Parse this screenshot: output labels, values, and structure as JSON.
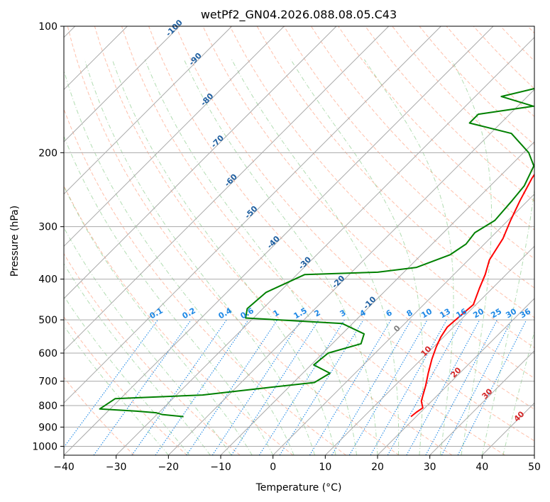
{
  "chart_data": {
    "type": "line",
    "title": "wetPf2_GN04.2026.088.08.05.C43",
    "xlabel": "Temperature (°C)",
    "ylabel": "Pressure (hPa)",
    "xlim": [
      -40,
      50
    ],
    "ylim": [
      1050,
      100
    ],
    "x_ticks": [
      "−40",
      "−30",
      "−20",
      "−10",
      "0",
      "10",
      "20",
      "30",
      "40",
      "50"
    ],
    "y_ticks": [
      {
        "p": 100,
        "label": "100"
      },
      {
        "p": 200,
        "label": "200"
      },
      {
        "p": 300,
        "label": "300"
      },
      {
        "p": 400,
        "label": "400"
      },
      {
        "p": 500,
        "label": "500"
      },
      {
        "p": 600,
        "label": "600"
      },
      {
        "p": 700,
        "label": "700"
      },
      {
        "p": 800,
        "label": "800"
      },
      {
        "p": 900,
        "label": "900"
      },
      {
        "p": 1000,
        "label": "1000"
      }
    ],
    "isotherm_labels": [
      "-100",
      "-90",
      "-80",
      "-70",
      "-60",
      "-50",
      "-40",
      "-30",
      "-20",
      "-10"
    ],
    "isotherm_label_values": [
      -100,
      -90,
      -80,
      -70,
      -60,
      -50,
      -40,
      -30,
      -20,
      -10
    ],
    "mixing_ratio_labels": [
      "0.1",
      "0.2",
      "0.4",
      "0.6",
      "1",
      "1.5",
      "2",
      "3",
      "4",
      "6",
      "8",
      "10",
      "13",
      "16",
      "20",
      "25",
      "30",
      "36"
    ],
    "mixing_ratio_values": [
      0.1,
      0.2,
      0.4,
      0.6,
      1,
      1.5,
      2,
      3,
      4,
      6,
      8,
      10,
      13,
      16,
      20,
      25,
      30,
      36
    ],
    "upper_isotherm_labels": [
      "0",
      "10",
      "20",
      "30",
      "40"
    ],
    "upper_isotherm_values": [
      0,
      10,
      20,
      30,
      40
    ],
    "colors": {
      "temperature": "#ff0000",
      "dewpoint": "#008000",
      "isotherm_label": "#1f5fa0",
      "mixing_ratio": "#1e88e5",
      "upper_isotherm_label": "#d62728",
      "zero_isotherm_label": "#808080",
      "dry_adiabat": "#ff8c66",
      "moist_adiabat": "#66bb66",
      "grid": "#aaaaaa"
    },
    "series": [
      {
        "name": "Temperature",
        "points": [
          [
            19.0,
            850
          ],
          [
            19.2,
            830
          ],
          [
            19.6,
            810
          ],
          [
            18.8,
            795
          ],
          [
            18.0,
            780
          ],
          [
            16.0,
            720
          ],
          [
            14.0,
            670
          ],
          [
            12.0,
            620
          ],
          [
            10.5,
            580
          ],
          [
            9.5,
            550
          ],
          [
            8.8,
            520
          ],
          [
            9.5,
            460
          ],
          [
            7.5,
            420
          ],
          [
            6.0,
            390
          ],
          [
            4.0,
            360
          ],
          [
            2.5,
            320
          ],
          [
            0.5,
            290
          ],
          [
            -1.5,
            260
          ],
          [
            -3.5,
            230
          ],
          [
            -4.5,
            210
          ],
          [
            -2.5,
            190
          ],
          [
            0.5,
            175
          ],
          [
            4.0,
            160
          ],
          [
            8.0,
            148
          ],
          [
            13.0,
            138
          ],
          [
            15.5,
            128
          ],
          [
            16.5,
            120
          ],
          [
            16.3,
            112
          ],
          [
            16.2,
            105
          ],
          [
            16.5,
            100
          ]
        ]
      },
      {
        "name": "Dewpoint",
        "points": [
          [
            -24.5,
            850
          ],
          [
            -29.0,
            840
          ],
          [
            -30.5,
            832
          ],
          [
            -34.5,
            825
          ],
          [
            -42.0,
            815
          ],
          [
            -41.0,
            770
          ],
          [
            -25.0,
            755
          ],
          [
            -14.0,
            725
          ],
          [
            -6.0,
            705
          ],
          [
            -4.8,
            670
          ],
          [
            -9.5,
            640
          ],
          [
            -9.0,
            600
          ],
          [
            -4.5,
            570
          ],
          [
            -5.8,
            540
          ],
          [
            -12.0,
            510
          ],
          [
            -31.5,
            495
          ],
          [
            -33.0,
            470
          ],
          [
            -32.5,
            430
          ],
          [
            -28.5,
            390
          ],
          [
            -15.0,
            385
          ],
          [
            -8.5,
            375
          ],
          [
            -4.5,
            350
          ],
          [
            -3.5,
            330
          ],
          [
            -4.0,
            310
          ],
          [
            -2.5,
            290
          ],
          [
            -3.0,
            260
          ],
          [
            -3.5,
            240
          ],
          [
            -5.5,
            215
          ],
          [
            -9.0,
            200
          ],
          [
            -16.0,
            180
          ],
          [
            -26.0,
            170
          ],
          [
            -26.0,
            162
          ],
          [
            -17.0,
            155
          ],
          [
            -25.0,
            147
          ],
          [
            -18.0,
            138
          ],
          [
            -14.0,
            130
          ],
          [
            -9.0,
            118
          ],
          [
            -3.0,
            100
          ]
        ]
      }
    ]
  }
}
